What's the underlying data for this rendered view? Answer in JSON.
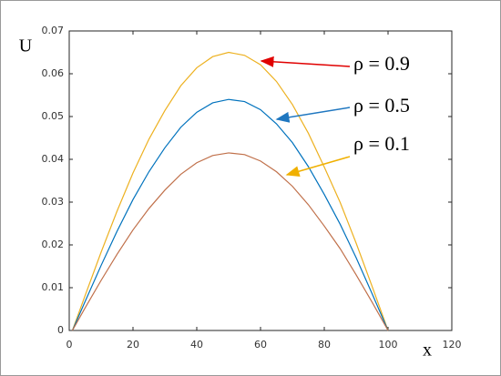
{
  "chart_data": {
    "type": "line",
    "x_label": "x",
    "y_label": "U",
    "x": [
      1,
      5,
      10,
      15,
      20,
      25,
      30,
      35,
      40,
      45,
      50,
      55,
      60,
      65,
      70,
      75,
      80,
      85,
      90,
      95,
      100
    ],
    "series": [
      {
        "color": "#EDB120",
        "values": [
          0,
          0.0082,
          0.0183,
          0.0279,
          0.0368,
          0.0447,
          0.0514,
          0.0572,
          0.0614,
          0.064,
          0.065,
          0.0643,
          0.0621,
          0.0582,
          0.0528,
          0.0461,
          0.0382,
          0.0299,
          0.0204,
          0.0103,
          0
        ]
      },
      {
        "color": "#0072BD",
        "values": [
          0,
          0.0068,
          0.0152,
          0.0232,
          0.0306,
          0.0371,
          0.0427,
          0.0475,
          0.051,
          0.0532,
          0.054,
          0.0535,
          0.0516,
          0.0483,
          0.0439,
          0.0383,
          0.0318,
          0.0248,
          0.017,
          0.0086,
          0
        ]
      },
      {
        "color": "#C0704A",
        "values": [
          0,
          0.0053,
          0.0117,
          0.0178,
          0.0235,
          0.0285,
          0.0328,
          0.0365,
          0.0392,
          0.0409,
          0.0415,
          0.0411,
          0.0396,
          0.0371,
          0.0337,
          0.0294,
          0.0244,
          0.0191,
          0.013,
          0.0066,
          0
        ]
      }
    ],
    "annotations": [
      {
        "text": "ρ = 0.9",
        "color": "#E00000"
      },
      {
        "text": "ρ = 0.5",
        "color": "#1F77C0"
      },
      {
        "text": "ρ = 0.1",
        "color": "#F0B000"
      }
    ],
    "xlim": [
      0,
      120
    ],
    "xticks": [
      0,
      20,
      40,
      60,
      80,
      100,
      120
    ],
    "ylim": [
      0,
      0.07
    ],
    "yticks": [
      0,
      0.01,
      0.02,
      0.03,
      0.04,
      0.05,
      0.06,
      0.07
    ]
  }
}
